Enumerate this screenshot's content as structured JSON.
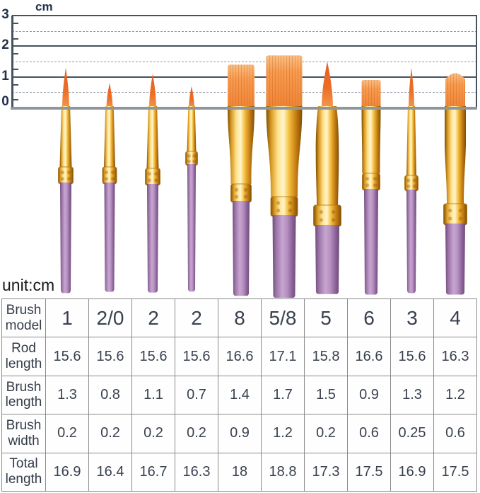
{
  "unit_note": "unit:cm",
  "ruler": {
    "unit_label": "cm",
    "tick_labels": [
      {
        "text": "3",
        "value": 3
      },
      {
        "text": "2",
        "value": 2
      },
      {
        "text": "1",
        "value": 1
      },
      {
        "text": "0",
        "value": 0
      }
    ]
  },
  "brushes": [
    {
      "model": "1",
      "shape": "round"
    },
    {
      "model": "2/0",
      "shape": "round"
    },
    {
      "model": "2",
      "shape": "round"
    },
    {
      "model": "2",
      "shape": "round"
    },
    {
      "model": "8",
      "shape": "flat"
    },
    {
      "model": "5/8",
      "shape": "flat-wash"
    },
    {
      "model": "5",
      "shape": "round-large"
    },
    {
      "model": "6",
      "shape": "flat"
    },
    {
      "model": "3",
      "shape": "round"
    },
    {
      "model": "4",
      "shape": "filbert"
    }
  ],
  "colors": {
    "bristle_orange": "#ee7229",
    "ferrule_gold": "#f0b649",
    "handle_purple": "#b48bbe",
    "ruler_line": "#46525e",
    "table_border": "#8a8a8a",
    "text_dark": "#39414e"
  },
  "chart_data": {
    "type": "table",
    "unit": "cm",
    "columns": [
      "1",
      "2/0",
      "2",
      "2",
      "8",
      "5/8",
      "5",
      "6",
      "3",
      "4"
    ],
    "rows": [
      {
        "label": "Brush model",
        "values": [
          "1",
          "2/0",
          "2",
          "2",
          "8",
          "5/8",
          "5",
          "6",
          "3",
          "4"
        ]
      },
      {
        "label": "Rod length",
        "values": [
          "15.6",
          "15.6",
          "15.6",
          "15.6",
          "16.6",
          "17.1",
          "15.8",
          "16.6",
          "15.6",
          "16.3"
        ]
      },
      {
        "label": "Brush length",
        "values": [
          "1.3",
          "0.8",
          "1.1",
          "0.7",
          "1.4",
          "1.7",
          "1.5",
          "0.9",
          "1.3",
          "1.2"
        ]
      },
      {
        "label": "Brush width",
        "values": [
          "0.2",
          "0.2",
          "0.2",
          "0.2",
          "0.9",
          "1.2",
          "0.2",
          "0.6",
          "0.25",
          "0.6"
        ]
      },
      {
        "label": "Total length",
        "values": [
          "16.9",
          "16.4",
          "16.7",
          "16.3",
          "18",
          "18.8",
          "17.3",
          "17.5",
          "16.9",
          "17.5"
        ]
      }
    ],
    "ruler_axis": {
      "label": "cm",
      "ticks": [
        0,
        1,
        2,
        3
      ],
      "dashed_at": [
        0.5,
        1.5,
        2.5
      ]
    }
  }
}
